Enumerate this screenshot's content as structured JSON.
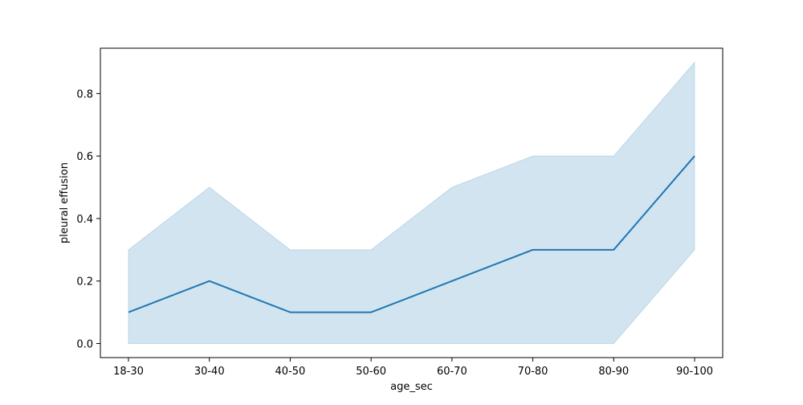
{
  "chart_data": {
    "type": "line",
    "title": "",
    "xlabel": "age_sec",
    "ylabel": "pleural effusion",
    "categories": [
      "18-30",
      "30-40",
      "40-50",
      "50-60",
      "60-70",
      "70-80",
      "80-90",
      "90-100"
    ],
    "series": [
      {
        "values": [
          0.1,
          0.2,
          0.1,
          0.1,
          0.2,
          0.3,
          0.3,
          0.6
        ],
        "ci_low": [
          0.0,
          0.0,
          0.0,
          0.0,
          0.0,
          0.0,
          0.0,
          0.3
        ],
        "ci_high": [
          0.3,
          0.5,
          0.3,
          0.3,
          0.5,
          0.6,
          0.6,
          0.9
        ]
      }
    ],
    "ylim": [
      -0.045,
      0.945
    ],
    "yticks": [
      0.0,
      0.2,
      0.4,
      0.6,
      0.8
    ],
    "ytick_labels": [
      "0.0",
      "0.2",
      "0.4",
      "0.6",
      "0.8"
    ],
    "grid": false,
    "legend": "none",
    "colors": {
      "line": "#1f77b4",
      "band": "#1f77b4"
    }
  }
}
